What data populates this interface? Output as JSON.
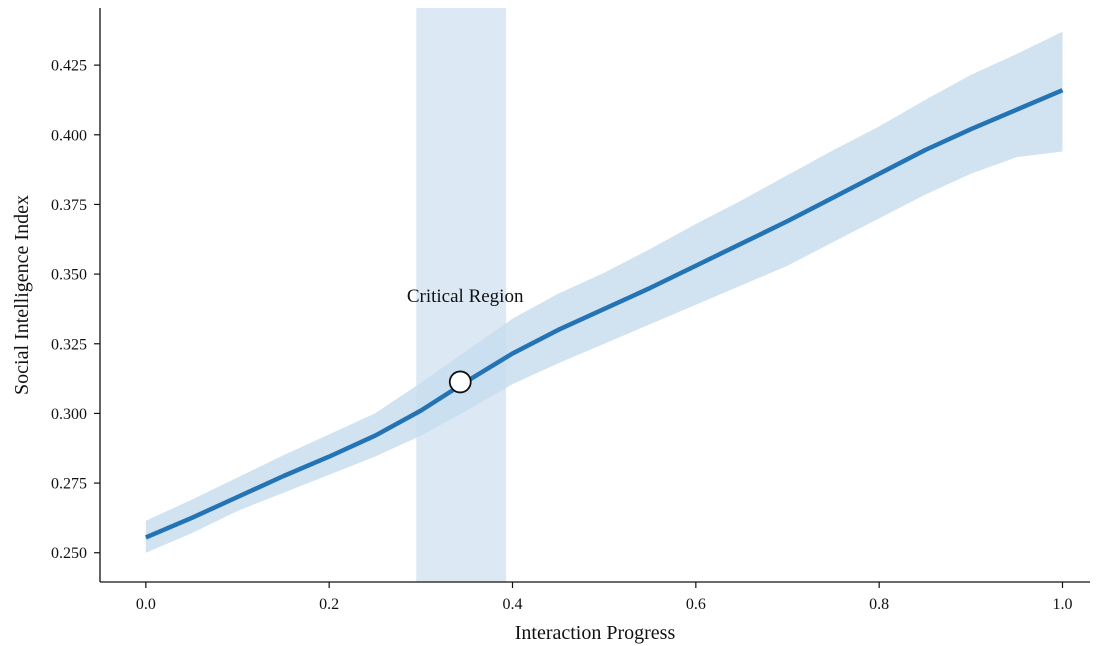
{
  "chart_data": {
    "type": "line",
    "title": "",
    "xlabel": "Interaction Progress",
    "ylabel": "Social Intelligence Index",
    "xlim": [
      -0.05,
      1.03
    ],
    "ylim": [
      0.2395,
      0.4455
    ],
    "xticks": [
      0.0,
      0.2,
      0.4,
      0.6,
      0.8,
      1.0
    ],
    "xtick_labels": [
      "0.0",
      "0.2",
      "0.4",
      "0.6",
      "0.8",
      "1.0"
    ],
    "yticks": [
      0.25,
      0.275,
      0.3,
      0.325,
      0.35,
      0.375,
      0.4,
      0.425
    ],
    "ytick_labels": [
      "0.250",
      "0.275",
      "0.300",
      "0.325",
      "0.350",
      "0.375",
      "0.400",
      "0.425"
    ],
    "grid": false,
    "legend": "none",
    "series": [
      {
        "x": [
          0.0,
          0.05,
          0.1,
          0.15,
          0.2,
          0.25,
          0.3,
          0.35,
          0.4,
          0.45,
          0.5,
          0.55,
          0.6,
          0.65,
          0.7,
          0.75,
          0.8,
          0.85,
          0.9,
          0.95,
          1.0
        ],
        "y": [
          0.2555,
          0.2625,
          0.27,
          0.2775,
          0.2845,
          0.292,
          0.301,
          0.3115,
          0.3215,
          0.33,
          0.3375,
          0.345,
          0.353,
          0.361,
          0.369,
          0.3775,
          0.386,
          0.3945,
          0.402,
          0.409,
          0.416
        ],
        "lower": [
          0.25,
          0.257,
          0.265,
          0.2715,
          0.278,
          0.2845,
          0.292,
          0.301,
          0.3105,
          0.318,
          0.325,
          0.332,
          0.339,
          0.346,
          0.353,
          0.3615,
          0.37,
          0.3785,
          0.386,
          0.392,
          0.394
        ],
        "upper": [
          0.2615,
          0.269,
          0.277,
          0.285,
          0.2925,
          0.3,
          0.311,
          0.3225,
          0.334,
          0.343,
          0.3505,
          0.359,
          0.368,
          0.3765,
          0.3855,
          0.3945,
          0.403,
          0.4125,
          0.4215,
          0.429,
          0.437
        ],
        "color": "#2474b5",
        "band_color": "#c6dcee"
      }
    ],
    "highlight_region": {
      "x_start": 0.295,
      "x_end": 0.393,
      "color": "#dce9f5",
      "label": "Critical Region"
    },
    "marker": {
      "x": 0.343,
      "y": 0.3113,
      "fill": "#ffffff",
      "stroke": "#111111"
    }
  }
}
